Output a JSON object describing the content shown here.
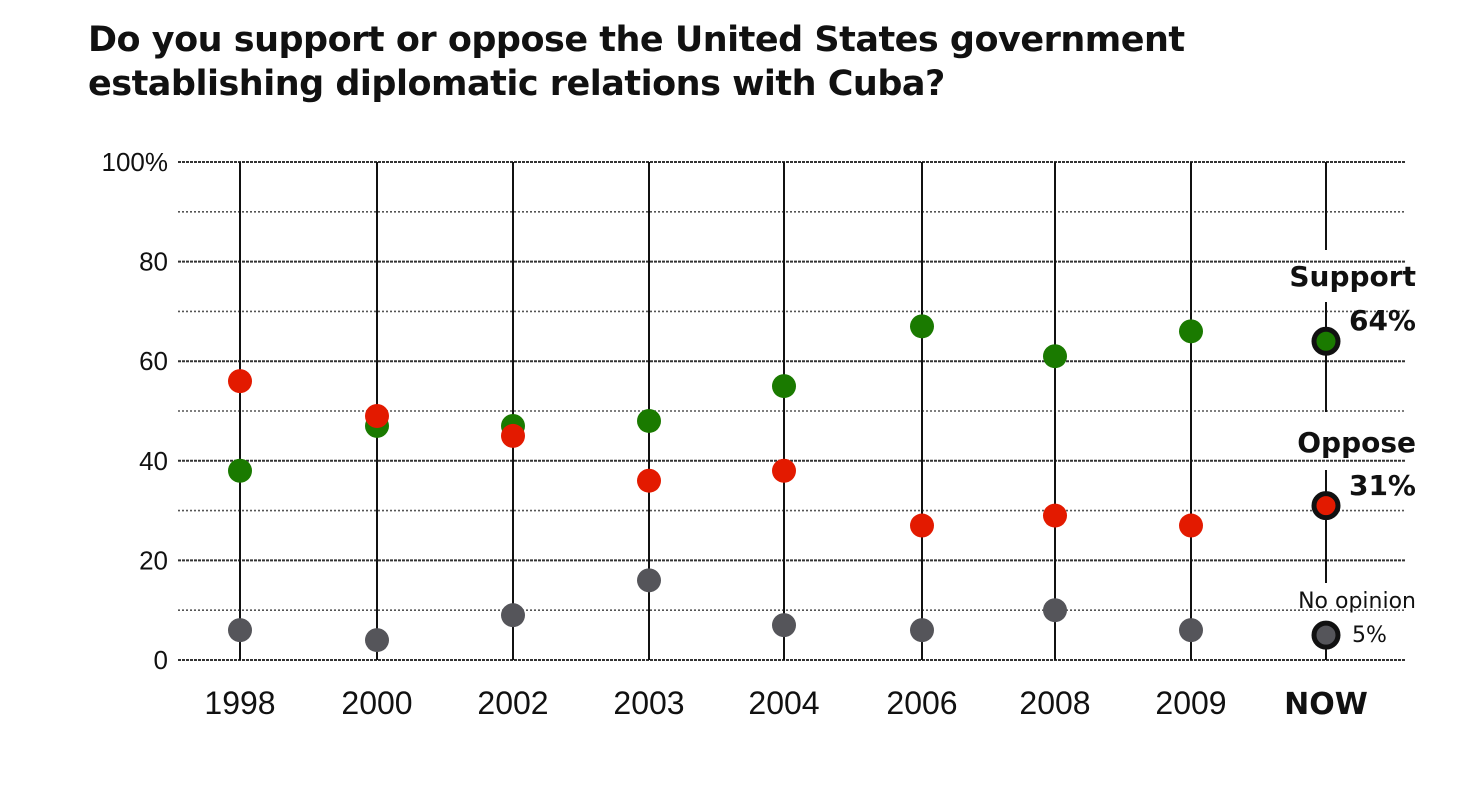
{
  "chart_data": {
    "type": "scatter",
    "title_lines": [
      "Do you support or oppose the United States government",
      "establishing diplomatic relations with Cuba?"
    ],
    "categories": [
      "1998",
      "2000",
      "2002",
      "2003",
      "2004",
      "2006",
      "2008",
      "2009",
      "NOW"
    ],
    "y_ticks": [
      "100%",
      "80",
      "60",
      "40",
      "20",
      "0"
    ],
    "ylim": [
      0,
      100
    ],
    "grid": true,
    "series": [
      {
        "name": "Support",
        "color": "#1a7a00",
        "values": [
          38,
          47,
          47,
          48,
          55,
          67,
          61,
          66,
          64
        ]
      },
      {
        "name": "Oppose",
        "color": "#e31a00",
        "values": [
          56,
          49,
          45,
          36,
          38,
          27,
          29,
          27,
          31
        ]
      },
      {
        "name": "No opinion",
        "color": "#55555a",
        "values": [
          6,
          4,
          9,
          16,
          7,
          6,
          10,
          6,
          5
        ]
      }
    ],
    "now_labels": {
      "support_name": "Support",
      "support_value": "64%",
      "oppose_name": "Oppose",
      "oppose_value": "31%",
      "no_opinion_name": "No opinion",
      "no_opinion_value": "5%"
    }
  }
}
